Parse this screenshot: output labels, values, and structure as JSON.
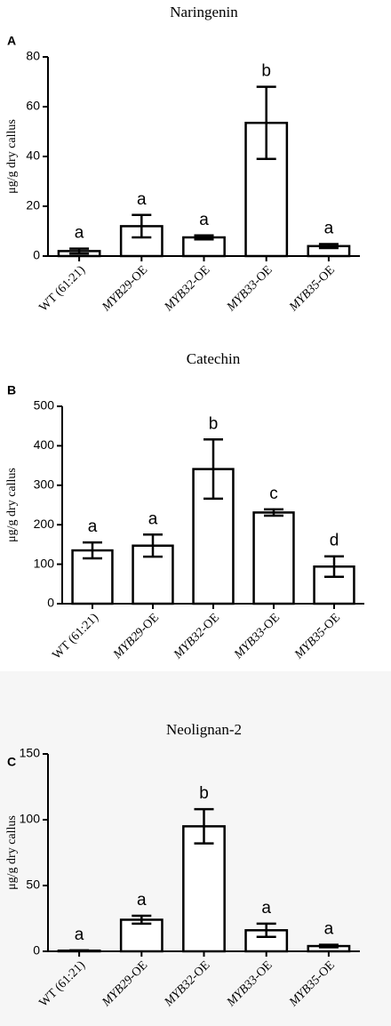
{
  "chart_data": [
    {
      "panel": "A",
      "type": "bar",
      "title": "Naringenin",
      "ylabel": "μg/g dry callus",
      "xlabel": "",
      "categories": [
        {
          "prefix": "",
          "italic": "",
          "suffix": "WT (61:21)"
        },
        {
          "prefix": "",
          "italic": "MYB29",
          "suffix": "-OE"
        },
        {
          "prefix": "",
          "italic": "MYB32",
          "suffix": "-OE"
        },
        {
          "prefix": "",
          "italic": "MYB33",
          "suffix": "-OE"
        },
        {
          "prefix": "",
          "italic": "MYB35",
          "suffix": "-OE"
        }
      ],
      "values": [
        2,
        12,
        7.5,
        53.5,
        4
      ],
      "errors": [
        1,
        4.5,
        0.8,
        14.5,
        0.8
      ],
      "letters": [
        "a",
        "a",
        "a",
        "b",
        "a"
      ],
      "ylim": [
        0,
        80
      ],
      "yticks": [
        0,
        20,
        40,
        60,
        80
      ]
    },
    {
      "panel": "B",
      "type": "bar",
      "title": "Catechin",
      "ylabel": "μg/g dry callus",
      "xlabel": "",
      "categories": [
        {
          "prefix": "",
          "italic": "",
          "suffix": "WT (61:21)"
        },
        {
          "prefix": "",
          "italic": "MYB29",
          "suffix": "-OE"
        },
        {
          "prefix": "",
          "italic": "MYB32",
          "suffix": "-OE"
        },
        {
          "prefix": "",
          "italic": "MYB33",
          "suffix": "-OE"
        },
        {
          "prefix": "",
          "italic": "MYB35",
          "suffix": "-OE"
        }
      ],
      "values": [
        135,
        147,
        341,
        231,
        94
      ],
      "errors": [
        20,
        28,
        75,
        8,
        26
      ],
      "letters": [
        "a",
        "a",
        "b",
        "c",
        "d"
      ],
      "ylim": [
        0,
        500
      ],
      "yticks": [
        0,
        100,
        200,
        300,
        400,
        500
      ]
    },
    {
      "panel": "C",
      "type": "bar",
      "title": "Neolignan-2",
      "ylabel": "μg/g dry callus",
      "xlabel": "",
      "categories": [
        {
          "prefix": "",
          "italic": "",
          "suffix": "WT (61:21)"
        },
        {
          "prefix": "",
          "italic": "MYB29",
          "suffix": "-OE"
        },
        {
          "prefix": "",
          "italic": "MYB32",
          "suffix": "-OE"
        },
        {
          "prefix": "",
          "italic": "MYB33",
          "suffix": "-OE"
        },
        {
          "prefix": "",
          "italic": "MYB35",
          "suffix": "-OE"
        }
      ],
      "values": [
        0.5,
        24,
        95,
        16,
        4
      ],
      "errors": [
        0.3,
        3,
        13,
        5,
        1
      ],
      "letters": [
        "a",
        "a",
        "b",
        "a",
        "a"
      ],
      "ylim": [
        0,
        150
      ],
      "yticks": [
        0,
        50,
        100,
        150
      ]
    }
  ]
}
